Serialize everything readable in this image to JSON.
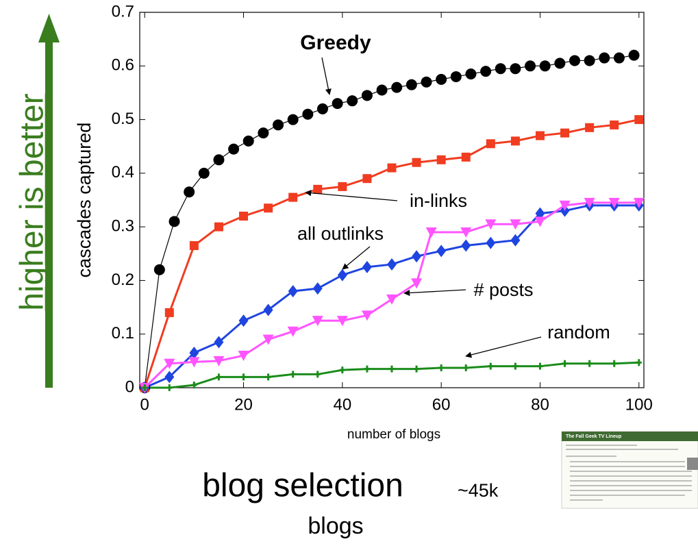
{
  "chart_data": {
    "type": "line",
    "xlabel": "number of blogs",
    "ylabel": "cascades captured",
    "xlim": [
      -1,
      101
    ],
    "ylim": [
      0,
      0.7
    ],
    "xticks": [
      0,
      20,
      40,
      60,
      80,
      100
    ],
    "yticks": [
      0,
      0.1,
      0.2,
      0.3,
      0.4,
      0.5,
      0.6,
      0.7
    ],
    "series": [
      {
        "name": "Greedy",
        "color": "#000000",
        "marker": "circle",
        "x": [
          0,
          3,
          6,
          9,
          12,
          15,
          18,
          21,
          24,
          27,
          30,
          33,
          36,
          39,
          42,
          45,
          48,
          51,
          54,
          57,
          60,
          63,
          66,
          69,
          72,
          75,
          78,
          81,
          84,
          87,
          90,
          93,
          96,
          99
        ],
        "values": [
          0,
          0.22,
          0.31,
          0.365,
          0.4,
          0.425,
          0.445,
          0.46,
          0.475,
          0.49,
          0.5,
          0.51,
          0.52,
          0.53,
          0.535,
          0.545,
          0.555,
          0.56,
          0.565,
          0.57,
          0.575,
          0.58,
          0.585,
          0.59,
          0.595,
          0.595,
          0.6,
          0.6,
          0.605,
          0.61,
          0.61,
          0.615,
          0.615,
          0.62
        ]
      },
      {
        "name": "in-links",
        "color": "#f03c20",
        "marker": "square",
        "x": [
          0,
          5,
          10,
          15,
          20,
          25,
          30,
          35,
          40,
          45,
          50,
          55,
          60,
          65,
          70,
          75,
          80,
          85,
          90,
          95,
          100
        ],
        "values": [
          0,
          0.14,
          0.265,
          0.3,
          0.32,
          0.335,
          0.355,
          0.37,
          0.375,
          0.39,
          0.41,
          0.42,
          0.425,
          0.43,
          0.455,
          0.46,
          0.47,
          0.475,
          0.485,
          0.49,
          0.5
        ]
      },
      {
        "name": "all outlinks",
        "color": "#1f45e0",
        "marker": "diamond",
        "x": [
          0,
          5,
          10,
          15,
          20,
          25,
          30,
          35,
          40,
          45,
          50,
          55,
          60,
          65,
          70,
          75,
          80,
          85,
          90,
          95,
          100
        ],
        "values": [
          0,
          0.02,
          0.065,
          0.085,
          0.125,
          0.145,
          0.18,
          0.185,
          0.21,
          0.225,
          0.23,
          0.245,
          0.255,
          0.265,
          0.27,
          0.275,
          0.325,
          0.33,
          0.34,
          0.34,
          0.34
        ]
      },
      {
        "name": "# posts",
        "color": "#ff55ff",
        "marker": "triangle",
        "x": [
          0,
          5,
          10,
          15,
          20,
          25,
          30,
          35,
          40,
          45,
          50,
          55,
          58,
          65,
          70,
          75,
          80,
          85,
          90,
          95,
          100
        ],
        "values": [
          0,
          0.045,
          0.048,
          0.05,
          0.06,
          0.09,
          0.105,
          0.125,
          0.125,
          0.135,
          0.165,
          0.195,
          0.29,
          0.29,
          0.305,
          0.305,
          0.31,
          0.34,
          0.345,
          0.345,
          0.345
        ]
      },
      {
        "name": "random",
        "color": "#1a8c1a",
        "marker": "plus",
        "x": [
          0,
          5,
          10,
          15,
          20,
          25,
          30,
          35,
          40,
          45,
          50,
          55,
          60,
          65,
          70,
          75,
          80,
          85,
          90,
          95,
          100
        ],
        "values": [
          0,
          0,
          0.005,
          0.02,
          0.02,
          0.02,
          0.025,
          0.025,
          0.033,
          0.035,
          0.035,
          0.035,
          0.037,
          0.037,
          0.04,
          0.04,
          0.04,
          0.045,
          0.045,
          0.045,
          0.047
        ]
      }
    ]
  },
  "slide": {
    "side_label": "higher is better",
    "caption": "blog selection",
    "caption_note": "~45k",
    "caption_second": "blogs",
    "thumbnail_title": "The Fall Geek TV Lineup"
  }
}
